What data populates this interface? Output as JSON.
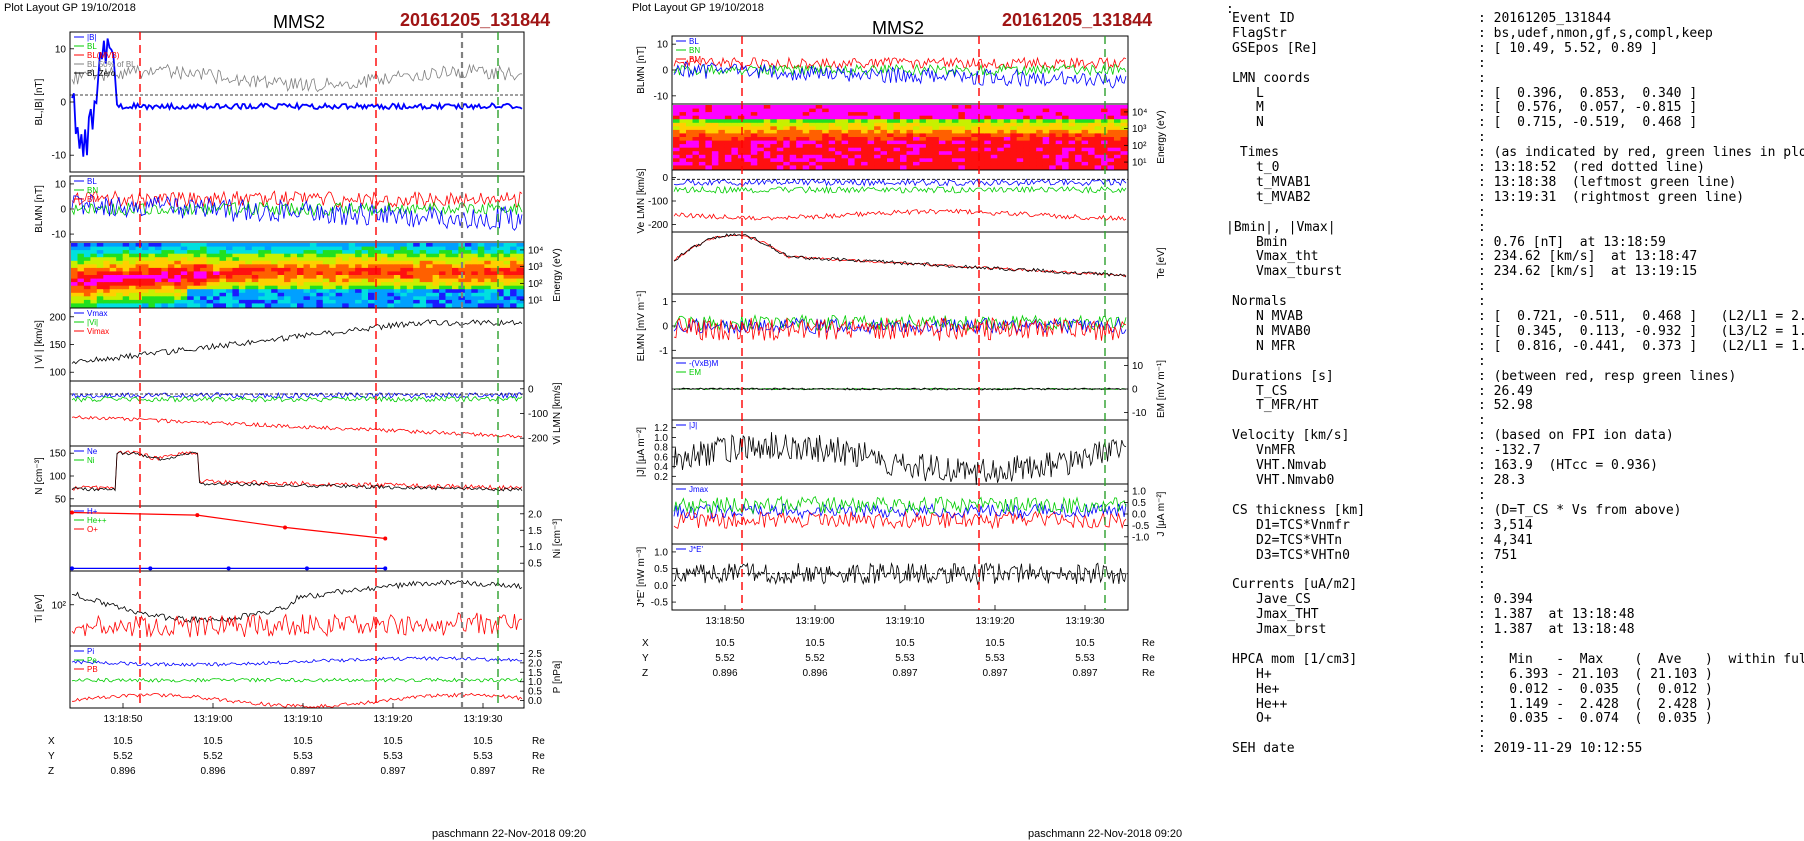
{
  "left": {
    "top_left_label": "Plot Layout GP 19/10/2018",
    "spacecraft": "MMS2",
    "event": "20161205_131844",
    "time_ticks": [
      "13:18:50",
      "13:19:00",
      "13:19:10",
      "13:19:20",
      "13:19:30"
    ],
    "panels": [
      {
        "name": "bl",
        "ylabel": "BL,|B| [nT]",
        "ticks": [
          "10",
          "0",
          "-10"
        ],
        "legend": [
          "|B|",
          "BL",
          "BL(MVB)",
          "BL 50% of BL",
          "BL Zero"
        ]
      },
      {
        "name": "blmn",
        "ylabel": "BLMN [nT]",
        "ticks": [
          "10",
          "0",
          "-10"
        ],
        "legend": [
          "BL",
          "BN",
          "BM"
        ]
      },
      {
        "name": "spec",
        "ylabel": "Energy (eV)",
        "ticks": [
          "10⁴",
          "10³",
          "10²",
          "10¹"
        ]
      },
      {
        "name": "vi",
        "ylabel": "| Vi | [km/s]",
        "ticks": [
          "200",
          "150",
          "100"
        ],
        "legend": [
          "Vmax",
          "|Vi|",
          "Vimax"
        ]
      },
      {
        "name": "vilmn",
        "ylabel": "Vi LMN [km/s]",
        "ticks": [
          "0",
          "-100",
          "-200"
        ]
      },
      {
        "name": "n",
        "ylabel": "N [cm⁻³]",
        "ticks": [
          "150",
          "100",
          "50"
        ],
        "legend": [
          "Ne",
          "Ni"
        ]
      },
      {
        "name": "ni",
        "ylabel": "Ni [cm⁻³]",
        "ticks": [
          "2.0",
          "1.5",
          "1.0",
          "0.5"
        ],
        "legend": [
          "H+",
          "He++",
          "O+"
        ]
      },
      {
        "name": "ti",
        "ylabel": "Ti [eV]",
        "ticks": [
          "10²"
        ]
      },
      {
        "name": "p",
        "ylabel": "P [nPa]",
        "ticks": [
          "2.5",
          "2.0",
          "1.5",
          "1.0",
          "0.5",
          "0.0"
        ],
        "legend": [
          "Pi",
          "Pe",
          "PB"
        ]
      }
    ],
    "coords": {
      "X": [
        "10.5",
        "10.5",
        "10.5",
        "10.5",
        "10.5"
      ],
      "Y": [
        "5.52",
        "5.52",
        "5.53",
        "5.53",
        "5.53"
      ],
      "Z": [
        "0.896",
        "0.896",
        "0.897",
        "0.897",
        "0.897"
      ],
      "unit": "Re"
    },
    "footer": "paschmann 22-Nov-2018 09:20"
  },
  "right": {
    "top_left_label": "Plot Layout GP 19/10/2018",
    "spacecraft": "MMS2",
    "event": "20161205_131844",
    "time_ticks": [
      "13:18:50",
      "13:19:00",
      "13:19:10",
      "13:19:20",
      "13:19:30"
    ],
    "panels": [
      {
        "name": "blmn",
        "ylabel": "BLMN [nT]",
        "ticks": [
          "10",
          "0",
          "-10"
        ],
        "legend": [
          "BL",
          "BN",
          "BM"
        ]
      },
      {
        "name": "espec",
        "ylabel": "Energy (eV)",
        "ticks": [
          "10⁴",
          "10³",
          "10²",
          "10¹"
        ]
      },
      {
        "name": "ve",
        "ylabel": "Ve LMN [km/s]",
        "ticks": [
          "0",
          "-100",
          "-200"
        ]
      },
      {
        "name": "te",
        "ylabel": "Te [eV]",
        "ticks": []
      },
      {
        "name": "e",
        "ylabel": "ELMN [mV m⁻¹]",
        "ticks": [
          "1",
          "0",
          "-1"
        ]
      },
      {
        "name": "em",
        "ylabel": "EM [mV m⁻¹]",
        "ticks": [
          "10",
          "0",
          "-10"
        ],
        "legend": [
          "-(VxB)M",
          "EM"
        ]
      },
      {
        "name": "j",
        "ylabel": "|J| [μA m⁻²]",
        "ticks": [
          "1.2",
          "1.0",
          "0.8",
          "0.6",
          "0.4",
          "0.2"
        ],
        "legend": [
          "|J|"
        ]
      },
      {
        "name": "jlmn",
        "ylabel": "J [μA m⁻²]",
        "ticks": [
          "1.0",
          "0.5",
          "0.0",
          "-0.5",
          "-1.0"
        ],
        "legend": [
          "Jmax"
        ]
      },
      {
        "name": "je",
        "ylabel": "J*E' [nW m⁻³]",
        "ticks": [
          "1.0",
          "0.5",
          "0.0",
          "-0.5"
        ],
        "legend": [
          "J*E'"
        ]
      }
    ],
    "coords": {
      "X": [
        "10.5",
        "10.5",
        "10.5",
        "10.5",
        "10.5"
      ],
      "Y": [
        "5.52",
        "5.52",
        "5.53",
        "5.53",
        "5.53"
      ],
      "Z": [
        "0.896",
        "0.896",
        "0.897",
        "0.897",
        "0.897"
      ],
      "unit": "Re"
    },
    "footer": "paschmann 22-Nov-2018 09:20"
  },
  "info": {
    "colon": ":",
    "rows": [
      {
        "k": "Event ID",
        "v": ": 20161205_131844",
        "i": 0
      },
      {
        "k": "FlagStr",
        "v": ": bs,udef,nmon,gf,s,compl,keep",
        "i": 0
      },
      {
        "k": "GSEpos [Re]",
        "v": ": [ 10.49, 5.52, 0.89 ]",
        "i": 0
      },
      {
        "gap": true
      },
      {
        "k": "LMN coords",
        "v": ":",
        "i": 0
      },
      {
        "k": "L",
        "v": ": [  0.396,  0.853,  0.340 ]",
        "i": 2
      },
      {
        "k": "M",
        "v": ": [  0.576,  0.057, -0.815 ]",
        "i": 2
      },
      {
        "k": "N",
        "v": ": [  0.715, -0.519,  0.468 ]",
        "i": 2
      },
      {
        "gap": true
      },
      {
        "k": " Times",
        "v": ": (as indicated by red, green lines in plots)",
        "i": 0
      },
      {
        "k": "t_0",
        "v": ": 13:18:52  (red dotted line)",
        "i": 2
      },
      {
        "k": "t_MVAB1",
        "v": ": 13:18:38  (leftmost green line)",
        "i": 2
      },
      {
        "k": "t_MVAB2",
        "v": ": 13:19:31  (rightmost green line)",
        "i": 2
      },
      {
        "gap": true
      },
      {
        "k": "|Bmin|, |Vmax|",
        "v": ":",
        "i": -1
      },
      {
        "k": "Bmin",
        "v": ": 0.76 [nT]  at 13:18:59",
        "i": 2
      },
      {
        "k": "Vmax_tht",
        "v": ": 234.62 [km/s]  at 13:18:47",
        "i": 2
      },
      {
        "k": "Vmax_tburst",
        "v": ": 234.62 [km/s]  at 13:19:15",
        "i": 2
      },
      {
        "gap": true
      },
      {
        "k": "Normals",
        "v": ":",
        "i": 0
      },
      {
        "k": "N MVAB",
        "v": ": [  0.721, -0.511,  0.468 ]   (L2/L1 = 2.03)",
        "i": 2
      },
      {
        "k": "N MVAB0",
        "v": ": [  0.345,  0.113, -0.932 ]   (L3/L2 = 1.57)",
        "i": 2
      },
      {
        "k": "N MFR",
        "v": ": [  0.816, -0.441,  0.373 ]   (L2/L1 = 1.59)",
        "i": 2
      },
      {
        "gap": true
      },
      {
        "k": "Durations [s]",
        "v": ": (between red, resp green lines)",
        "i": 0
      },
      {
        "k": "T_CS",
        "v": ": 26.49",
        "i": 2
      },
      {
        "k": "T_MFR/HT",
        "v": ": 52.98",
        "i": 2
      },
      {
        "gap": true
      },
      {
        "k": "Velocity [km/s]",
        "v": ": (based on FPI ion data)",
        "i": 0
      },
      {
        "k": "VnMFR",
        "v": ": -132.7",
        "i": 2
      },
      {
        "k": "VHT.Nmvab",
        "v": ": 163.9  (HTcc = 0.936)",
        "i": 2
      },
      {
        "k": "VHT.Nmvab0",
        "v": ": 28.3",
        "i": 2
      },
      {
        "gap": true
      },
      {
        "k": "CS thickness [km]",
        "v": ": (D=T_CS * Vs from above)",
        "i": 0
      },
      {
        "k": "D1=TCS*Vnmfr",
        "v": ": 3,514",
        "i": 2
      },
      {
        "k": "D2=TCS*VHTn",
        "v": ": 4,341",
        "i": 2
      },
      {
        "k": "D3=TCS*VHTn0",
        "v": ": 751",
        "i": 2
      },
      {
        "gap": true
      },
      {
        "k": "Currents [uA/m2]",
        "v": ":",
        "i": 0
      },
      {
        "k": "Jave_CS",
        "v": ": 0.394",
        "i": 2
      },
      {
        "k": "Jmax_THT",
        "v": ": 1.387  at 13:18:48",
        "i": 2
      },
      {
        "k": "Jmax_brst",
        "v": ": 1.387  at 13:18:48",
        "i": 2
      },
      {
        "gap": true
      },
      {
        "k": "HPCA mom [1/cm3]",
        "v": ":   Min   -  Max    (  Ave   )  within full brst int",
        "i": 0
      },
      {
        "k": "H+",
        "v": ":   6.393 - 21.103  ( 21.103 )",
        "i": 2
      },
      {
        "k": "He+",
        "v": ":   0.012 -  0.035  (  0.012 )",
        "i": 2
      },
      {
        "k": "He++",
        "v": ":   1.149 -  2.428  (  2.428 )",
        "i": 2
      },
      {
        "k": "O+",
        "v": ":   0.035 -  0.074  (  0.035 )",
        "i": 2
      },
      {
        "gap": true
      },
      {
        "k": "SEH date",
        "v": ": 2019-11-29 10:12:55",
        "i": 0
      }
    ]
  },
  "chart_data": [
    {
      "type": "line",
      "title": "MMS2 20161205_131844",
      "xlabel": "",
      "x": [
        "13:18:50",
        "13:19:00",
        "13:19:10",
        "13:19:20",
        "13:19:30"
      ],
      "panels": [
        {
          "name": "BL,|B| [nT]",
          "ylim": [
            -15,
            15
          ],
          "series": [
            {
              "name": "|B|",
              "color": "#808080",
              "level": 5
            },
            {
              "name": "BL",
              "color": "#0000ff",
              "level": -1
            }
          ]
        },
        {
          "name": "BLMN [nT]",
          "ylim": [
            -15,
            15
          ],
          "series": [
            {
              "name": "BL",
              "color": "#0000ff",
              "level": 0
            },
            {
              "name": "BN",
              "color": "#00cc00",
              "level": 0
            },
            {
              "name": "BM",
              "color": "#ff0000",
              "level": 3
            }
          ]
        },
        {
          "name": "Energy (eV)",
          "type": "heatmap",
          "ylim": [
            "10¹",
            "10⁴"
          ]
        },
        {
          "name": "| Vi | [km/s]",
          "ylim": [
            80,
            240
          ],
          "series": [
            {
              "name": "|Vi|",
              "color": "#000000",
              "start": 100,
              "end": 210
            }
          ]
        },
        {
          "name": "Vi LMN [km/s]",
          "ylim": [
            -250,
            30
          ],
          "series": [
            {
              "name": "L",
              "color": "#0000ff",
              "level": -10
            },
            {
              "name": "M",
              "color": "#00cc00",
              "level": -20
            },
            {
              "name": "N",
              "color": "#ff0000",
              "level": -180
            }
          ]
        },
        {
          "name": "N [cm⁻³]",
          "ylim": [
            20,
            190
          ],
          "series": [
            {
              "name": "Ne",
              "color": "#ff0000",
              "peak": 180,
              "end": 60
            },
            {
              "name": "Ni",
              "color": "#000000",
              "peak": 175,
              "end": 55
            }
          ]
        },
        {
          "name": "Ni [cm⁻³]",
          "ylim": [
            0,
            2.5
          ],
          "series": [
            {
              "name": "He++",
              "color": "#ff0000",
              "points": [
                [
                  0,
                  2.3
                ],
                [
                  0.4,
                  2.1
                ],
                [
                  0.68,
                  1.6
                ],
                [
                  1,
                  1.15
                ]
              ]
            },
            {
              "name": "O+",
              "color": "#0000ff",
              "points": [
                [
                  0,
                  0.04
                ],
                [
                  1,
                  0.04
                ]
              ]
            }
          ]
        },
        {
          "name": "Ti [eV]",
          "ylim": [
            10,
            400
          ],
          "series": [
            {
              "name": "Ti",
              "color": "#000000"
            },
            {
              "name": "Te",
              "color": "#ff0000"
            }
          ]
        },
        {
          "name": "P [nPa]",
          "ylim": [
            0,
            2.5
          ],
          "series": [
            {
              "name": "Pi",
              "color": "#0000ff",
              "level": 1.9
            },
            {
              "name": "Pe",
              "color": "#00cc00",
              "level": 1.1
            },
            {
              "name": "PB",
              "color": "#ff0000",
              "level": 0.3
            }
          ]
        }
      ],
      "markers": {
        "red_dashed": [
          "13:18:52",
          "13:19:19"
        ],
        "green_dashed": [
          "13:19:31"
        ]
      }
    },
    {
      "type": "line",
      "title": "MMS2 20161205_131844",
      "x": [
        "13:18:50",
        "13:19:00",
        "13:19:10",
        "13:19:20",
        "13:19:30"
      ],
      "panels": [
        {
          "name": "BLMN [nT]",
          "ylim": [
            -15,
            15
          ]
        },
        {
          "name": "Energy (eV)",
          "type": "heatmap"
        },
        {
          "name": "Ve LMN [km/s]",
          "ylim": [
            -250,
            50
          ]
        },
        {
          "name": "Te [eV]"
        },
        {
          "name": "ELMN [mV m⁻¹]",
          "ylim": [
            -2,
            2
          ]
        },
        {
          "name": "EM [mV m⁻¹]",
          "ylim": [
            -15,
            15
          ]
        },
        {
          "name": "|J| [μA m⁻²]",
          "ylim": [
            0.1,
            1.3
          ]
        },
        {
          "name": "J [μA m⁻²]",
          "ylim": [
            -1.3,
            1.3
          ]
        },
        {
          "name": "J*E' [nW m⁻³]",
          "ylim": [
            -0.8,
            1.1
          ]
        }
      ]
    }
  ]
}
